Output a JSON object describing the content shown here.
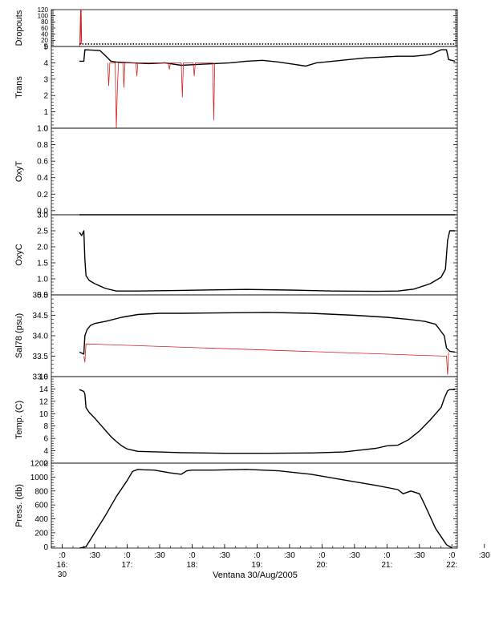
{
  "figure": {
    "caption": "Ventana 30/Aug/2005"
  },
  "colors": {
    "axis": "#000000",
    "primary_series": "#000000",
    "raw_series": "#d42020",
    "background": "#ffffff"
  },
  "time_axis": {
    "range_minutes": [
      980,
      1355
    ],
    "tick_labels": [
      {
        "t": 990,
        "line1": ":0",
        "line2": "16:",
        "line3": "30"
      },
      {
        "t": 1020,
        "line1": ":30",
        "line2": "",
        "line3": ""
      },
      {
        "t": 1050,
        "line1": ":0",
        "line2": "17:",
        "line3": ""
      },
      {
        "t": 1080,
        "line1": ":30",
        "line2": "",
        "line3": ""
      },
      {
        "t": 1110,
        "line1": ":0",
        "line2": "18:",
        "line3": ""
      },
      {
        "t": 1140,
        "line1": ":30",
        "line2": "",
        "line3": ""
      },
      {
        "t": 1170,
        "line1": ":0",
        "line2": "19:",
        "line3": ""
      },
      {
        "t": 1200,
        "line1": ":30",
        "line2": "",
        "line3": ""
      },
      {
        "t": 1230,
        "line1": ":0",
        "line2": "20:",
        "line3": ""
      },
      {
        "t": 1260,
        "line1": ":30",
        "line2": "",
        "line3": ""
      },
      {
        "t": 1290,
        "line1": ":0",
        "line2": "21:",
        "line3": ""
      },
      {
        "t": 1320,
        "line1": ":30",
        "line2": "",
        "line3": ""
      },
      {
        "t": 1350,
        "line1": ":0",
        "line2": "22:",
        "line3": ""
      },
      {
        "t": 1380,
        "line1": ":30",
        "line2": "",
        "line3": ""
      }
    ]
  },
  "chart_data": [
    {
      "id": "dropouts",
      "type": "line",
      "ylabel": "Dropouts",
      "ylim": [
        0,
        120
      ],
      "yticks": [
        0,
        20,
        40,
        60,
        80,
        100,
        120
      ],
      "series": [
        {
          "role": "raw",
          "x": [
            1006,
            1006.2,
            1007,
            1007.3,
            1007.6,
            1008
          ],
          "y": [
            0,
            8,
            120,
            8,
            120,
            8
          ]
        },
        {
          "role": "main",
          "style": "dotted",
          "x": [
            1006,
            1353
          ],
          "y": [
            8,
            8
          ]
        }
      ]
    },
    {
      "id": "trans",
      "type": "line",
      "ylabel": "Trans",
      "ylim": [
        0,
        5
      ],
      "yticks": [
        0,
        1,
        2,
        3,
        4,
        5
      ],
      "series": [
        {
          "role": "main",
          "x": [
            1006,
            1010,
            1011,
            1025,
            1032,
            1035,
            1040,
            1055,
            1070,
            1085,
            1100,
            1115,
            1130,
            1145,
            1160,
            1175,
            1190,
            1205,
            1215,
            1225,
            1240,
            1255,
            1270,
            1285,
            1300,
            1315,
            1330,
            1340,
            1345,
            1347,
            1353
          ],
          "y": [
            4.1,
            4.1,
            4.8,
            4.75,
            4.3,
            4.1,
            4.05,
            4.0,
            3.95,
            4.0,
            3.85,
            3.9,
            3.95,
            4.0,
            4.1,
            4.15,
            4.05,
            3.9,
            3.8,
            4.0,
            4.1,
            4.2,
            4.3,
            4.35,
            4.4,
            4.4,
            4.5,
            4.8,
            4.8,
            4.2,
            4.1
          ]
        },
        {
          "role": "raw",
          "x": [
            1032,
            1033,
            1034,
            1039,
            1040,
            1041,
            1041.5,
            1042,
            1046,
            1047,
            1048,
            1058,
            1059,
            1060,
            1088,
            1089,
            1090,
            1100,
            1101,
            1102,
            1111,
            1112,
            1113,
            1129,
            1130,
            1131
          ],
          "y": [
            4.0,
            2.6,
            4.0,
            4.0,
            0.0,
            2.4,
            3.2,
            4.0,
            4.0,
            2.5,
            4.0,
            4.0,
            3.2,
            4.0,
            4.0,
            3.6,
            4.0,
            4.0,
            1.9,
            4.0,
            4.0,
            3.2,
            4.0,
            4.0,
            0.5,
            4.0
          ]
        }
      ]
    },
    {
      "id": "oxyt",
      "type": "line",
      "ylabel": "OxyT",
      "ylim": [
        -0.05,
        1.0
      ],
      "yticks": [
        0.0,
        0.2,
        0.4,
        0.6,
        0.8,
        1.0
      ],
      "series": [
        {
          "role": "main",
          "x": [
            1006,
            1353
          ],
          "y": [
            -0.05,
            -0.05
          ]
        }
      ]
    },
    {
      "id": "oxyc",
      "type": "line",
      "ylabel": "OxyC",
      "ylim": [
        0.5,
        3.0
      ],
      "yticks": [
        0.5,
        1.0,
        1.5,
        2.0,
        2.5,
        3.0
      ],
      "series": [
        {
          "role": "main",
          "x": [
            1006,
            1008,
            1010,
            1011,
            1012,
            1015,
            1020,
            1030,
            1040,
            1060,
            1100,
            1160,
            1200,
            1240,
            1280,
            1300,
            1315,
            1330,
            1340,
            1344,
            1346,
            1348,
            1353
          ],
          "y": [
            2.45,
            2.35,
            2.5,
            1.6,
            1.1,
            0.95,
            0.85,
            0.7,
            0.62,
            0.62,
            0.64,
            0.67,
            0.65,
            0.62,
            0.61,
            0.62,
            0.68,
            0.85,
            1.05,
            1.3,
            2.2,
            2.5,
            2.5
          ]
        }
      ]
    },
    {
      "id": "sal78",
      "type": "line",
      "ylabel": "Sal78 (psu)",
      "ylim": [
        33.0,
        35.0
      ],
      "yticks": [
        33.0,
        33.5,
        34.0,
        34.5,
        35.0
      ],
      "series": [
        {
          "role": "main",
          "x": [
            1006,
            1010,
            1011,
            1013,
            1016,
            1020,
            1030,
            1045,
            1060,
            1080,
            1100,
            1140,
            1180,
            1220,
            1260,
            1290,
            1310,
            1325,
            1335,
            1343,
            1345,
            1348,
            1353
          ],
          "y": [
            33.6,
            33.55,
            34.0,
            34.15,
            34.25,
            34.3,
            34.35,
            34.45,
            34.52,
            34.55,
            34.55,
            34.56,
            34.57,
            34.55,
            34.5,
            34.45,
            34.4,
            34.35,
            34.28,
            34.0,
            33.7,
            33.62,
            33.6
          ]
        },
        {
          "role": "raw",
          "x": [
            1010,
            1011,
            1012,
            1345,
            1346,
            1347
          ],
          "y": [
            33.5,
            33.35,
            33.8,
            33.5,
            33.05,
            33.6
          ]
        }
      ]
    },
    {
      "id": "temp",
      "type": "line",
      "ylabel": "Temp. (C)",
      "ylim": [
        2,
        16
      ],
      "yticks": [
        2,
        4,
        6,
        8,
        10,
        12,
        14,
        16
      ],
      "series": [
        {
          "role": "main",
          "x": [
            1006,
            1010,
            1011,
            1012,
            1015,
            1020,
            1025,
            1030,
            1035,
            1040,
            1045,
            1050,
            1060,
            1080,
            1100,
            1140,
            1180,
            1220,
            1250,
            1260,
            1280,
            1290,
            1300,
            1310,
            1320,
            1330,
            1340,
            1343,
            1346,
            1348,
            1353
          ],
          "y": [
            13.9,
            13.6,
            13.2,
            11.0,
            10.2,
            9.3,
            8.3,
            7.3,
            6.3,
            5.5,
            4.8,
            4.3,
            3.9,
            3.8,
            3.7,
            3.6,
            3.6,
            3.65,
            3.8,
            4.0,
            4.4,
            4.8,
            4.9,
            5.8,
            7.2,
            9.0,
            11.0,
            12.5,
            13.7,
            13.9,
            13.9
          ]
        }
      ]
    },
    {
      "id": "press",
      "type": "line",
      "ylabel": "Press. (db)",
      "ylim": [
        -20,
        1200
      ],
      "yticks": [
        0,
        200,
        400,
        600,
        800,
        1000,
        1200
      ],
      "series": [
        {
          "role": "main",
          "x": [
            1006,
            1012,
            1020,
            1030,
            1040,
            1050,
            1055,
            1060,
            1065,
            1075,
            1090,
            1100,
            1105,
            1110,
            1130,
            1160,
            1190,
            1220,
            1250,
            1280,
            1300,
            1305,
            1312,
            1320,
            1325,
            1335,
            1345,
            1350
          ],
          "y": [
            -20,
            0,
            200,
            450,
            720,
            950,
            1080,
            1110,
            1105,
            1100,
            1060,
            1040,
            1090,
            1100,
            1100,
            1110,
            1090,
            1040,
            960,
            880,
            820,
            760,
            800,
            760,
            600,
            260,
            30,
            -20
          ]
        }
      ]
    }
  ]
}
